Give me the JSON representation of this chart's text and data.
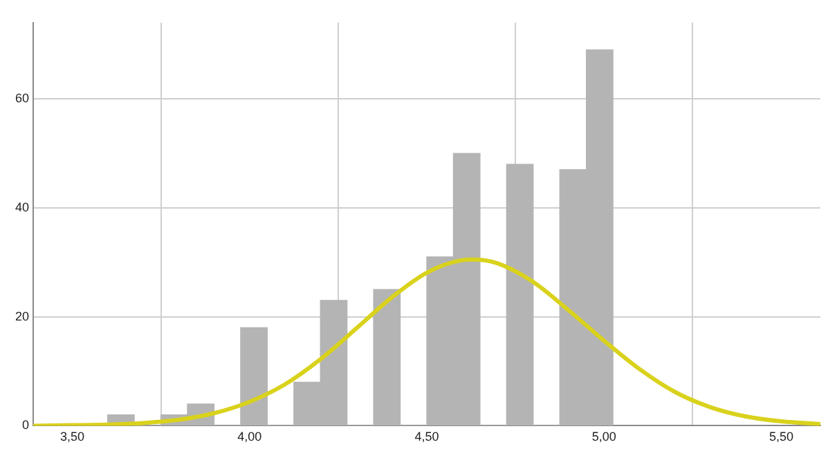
{
  "chart_data": {
    "type": "histogram",
    "bins": [
      3.6,
      3.675,
      3.75,
      3.825,
      3.9,
      3.975,
      4.05,
      4.125,
      4.2,
      4.275,
      4.35,
      4.425,
      4.5,
      4.575,
      4.65,
      4.725,
      4.8,
      4.875,
      4.95,
      5.025
    ],
    "values": [
      2,
      0,
      2,
      4,
      0,
      18,
      0,
      8,
      23,
      0,
      25,
      0,
      31,
      50,
      0,
      48,
      0,
      47,
      69
    ],
    "color": "#b4b4b4",
    "series": [
      {
        "type": "line",
        "color": "#d9d21c",
        "x": [
          3.39,
          3.5,
          3.6,
          3.7,
          3.8,
          3.9,
          4.0,
          4.1,
          4.2,
          4.3,
          4.4,
          4.5,
          4.6,
          4.63,
          4.7,
          4.8,
          4.9,
          5.0,
          5.1,
          5.2,
          5.3,
          5.4,
          5.5,
          5.61
        ],
        "values": [
          0.0,
          0.1,
          0.2,
          0.5,
          1.1,
          2.3,
          4.4,
          7.6,
          12.2,
          17.8,
          23.5,
          28.1,
          30.4,
          30.5,
          29.8,
          26.4,
          21.2,
          15.6,
          10.4,
          6.2,
          3.4,
          1.7,
          0.8,
          0.3
        ]
      }
    ],
    "xlim": [
      3.39,
      5.61
    ],
    "xticks": [
      {
        "value": 3.5,
        "label": "3,50"
      },
      {
        "value": 4.0,
        "label": "4,00"
      },
      {
        "value": 4.5,
        "label": "4,50"
      },
      {
        "value": 5.0,
        "label": "5,00"
      },
      {
        "value": 5.5,
        "label": "5,50"
      }
    ],
    "ylim": [
      0,
      74
    ],
    "yticks": [
      0,
      20,
      40,
      60
    ],
    "grid": true,
    "line_style": "solid",
    "marker": "none"
  }
}
